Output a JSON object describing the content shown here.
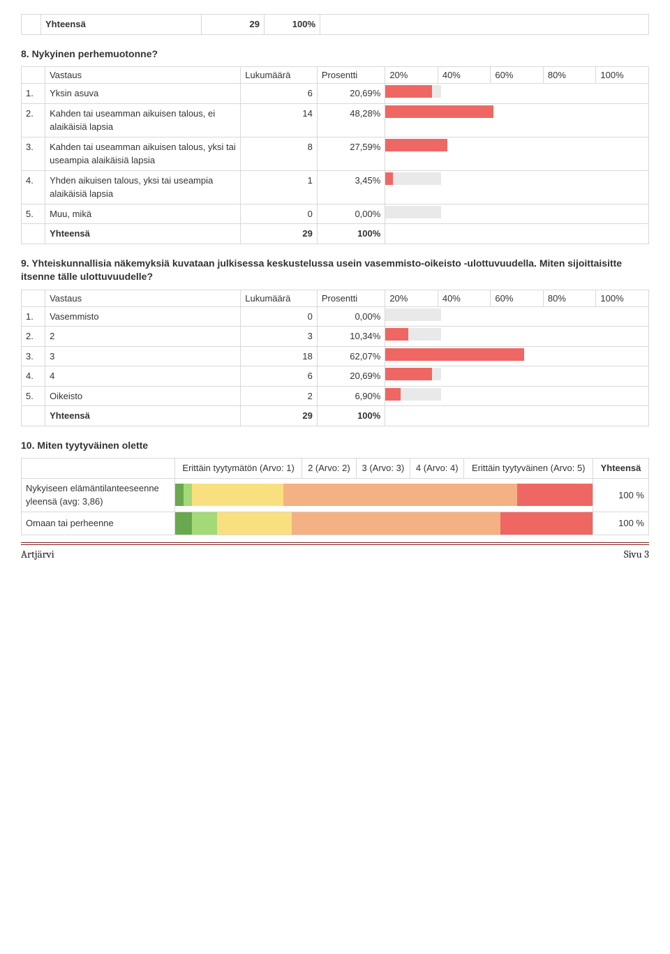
{
  "colors": {
    "bar_fill": "#ee6763",
    "bar_track": "#e9e9e9",
    "border": "#d8d8d8",
    "seg1": "#6aa84f",
    "seg2": "#a3d977",
    "seg3": "#f9e07f",
    "seg4": "#f4b183",
    "seg5": "#ee6763",
    "footer_rule": "#7a1f1f"
  },
  "top_total": {
    "label": "Yhteensä",
    "count": "29",
    "pct": "100%"
  },
  "q8": {
    "title": "8. Nykyinen perhemuotonne?",
    "header": {
      "c1": "Vastaus",
      "c2": "Lukumäärä",
      "c3": "Prosentti",
      "ticks": [
        "20%",
        "40%",
        "60%",
        "80%",
        "100%"
      ]
    },
    "rows": [
      {
        "idx": "1.",
        "label": "Yksin asuva",
        "count": "6",
        "pct": "20,69%",
        "val": 20.69
      },
      {
        "idx": "2.",
        "label": "Kahden tai useamman aikuisen talous, ei alaikäisiä lapsia",
        "count": "14",
        "pct": "48,28%",
        "val": 48.28
      },
      {
        "idx": "3.",
        "label": "Kahden tai useamman aikuisen talous, yksi tai useampia alaikäisiä lapsia",
        "count": "8",
        "pct": "27,59%",
        "val": 27.59
      },
      {
        "idx": "4.",
        "label": "Yhden aikuisen talous, yksi tai useampia alaikäisiä lapsia",
        "count": "1",
        "pct": "3,45%",
        "val": 3.45
      },
      {
        "idx": "5.",
        "label": "Muu, mikä",
        "count": "0",
        "pct": "0,00%",
        "val": 0.0
      }
    ],
    "total": {
      "label": "Yhteensä",
      "count": "29",
      "pct": "100%"
    }
  },
  "q9": {
    "title": "9. Yhteiskunnallisia näkemyksiä kuvataan julkisessa keskustelussa usein vasemmisto-oikeisto -ulottuvuudella. Miten sijoittaisitte itsenne tälle ulottuvuudelle?",
    "header": {
      "c1": "Vastaus",
      "c2": "Lukumäärä",
      "c3": "Prosentti",
      "ticks": [
        "20%",
        "40%",
        "60%",
        "80%",
        "100%"
      ]
    },
    "rows": [
      {
        "idx": "1.",
        "label": "Vasemmisto",
        "count": "0",
        "pct": "0,00%",
        "val": 0.0
      },
      {
        "idx": "2.",
        "label": "2",
        "count": "3",
        "pct": "10,34%",
        "val": 10.34
      },
      {
        "idx": "3.",
        "label": "3",
        "count": "18",
        "pct": "62,07%",
        "val": 62.07
      },
      {
        "idx": "4.",
        "label": "4",
        "count": "6",
        "pct": "20,69%",
        "val": 20.69
      },
      {
        "idx": "5.",
        "label": "Oikeisto",
        "count": "2",
        "pct": "6,90%",
        "val": 6.9
      }
    ],
    "total": {
      "label": "Yhteensä",
      "count": "29",
      "pct": "100%"
    }
  },
  "q10": {
    "title": "10. Miten tyytyväinen olette",
    "header": {
      "cols": [
        "",
        "Erittäin tyytymätön (Arvo: 1)",
        "2 (Arvo: 2)",
        "3 (Arvo: 3)",
        "4 (Arvo: 4)",
        "Erittäin tyytyväinen (Arvo: 5)",
        "Yhteensä"
      ]
    },
    "rows": [
      {
        "label": "Nykyiseen elämäntilanteeseenne yleensä (avg: 3,86)",
        "segs": [
          {
            "pct": 2,
            "color": "#6aa84f"
          },
          {
            "pct": 2,
            "color": "#a3d977"
          },
          {
            "pct": 22,
            "color": "#f9e07f"
          },
          {
            "pct": 56,
            "color": "#f4b183"
          },
          {
            "pct": 18,
            "color": "#ee6763"
          }
        ],
        "total": "100 %"
      },
      {
        "label": "Omaan tai perheenne",
        "segs": [
          {
            "pct": 4,
            "color": "#6aa84f"
          },
          {
            "pct": 6,
            "color": "#a3d977"
          },
          {
            "pct": 18,
            "color": "#f9e07f"
          },
          {
            "pct": 50,
            "color": "#f4b183"
          },
          {
            "pct": 22,
            "color": "#ee6763"
          }
        ],
        "total": "100 %"
      }
    ]
  },
  "footer": {
    "left": "Artjärvi",
    "right": "Sivu 3"
  }
}
